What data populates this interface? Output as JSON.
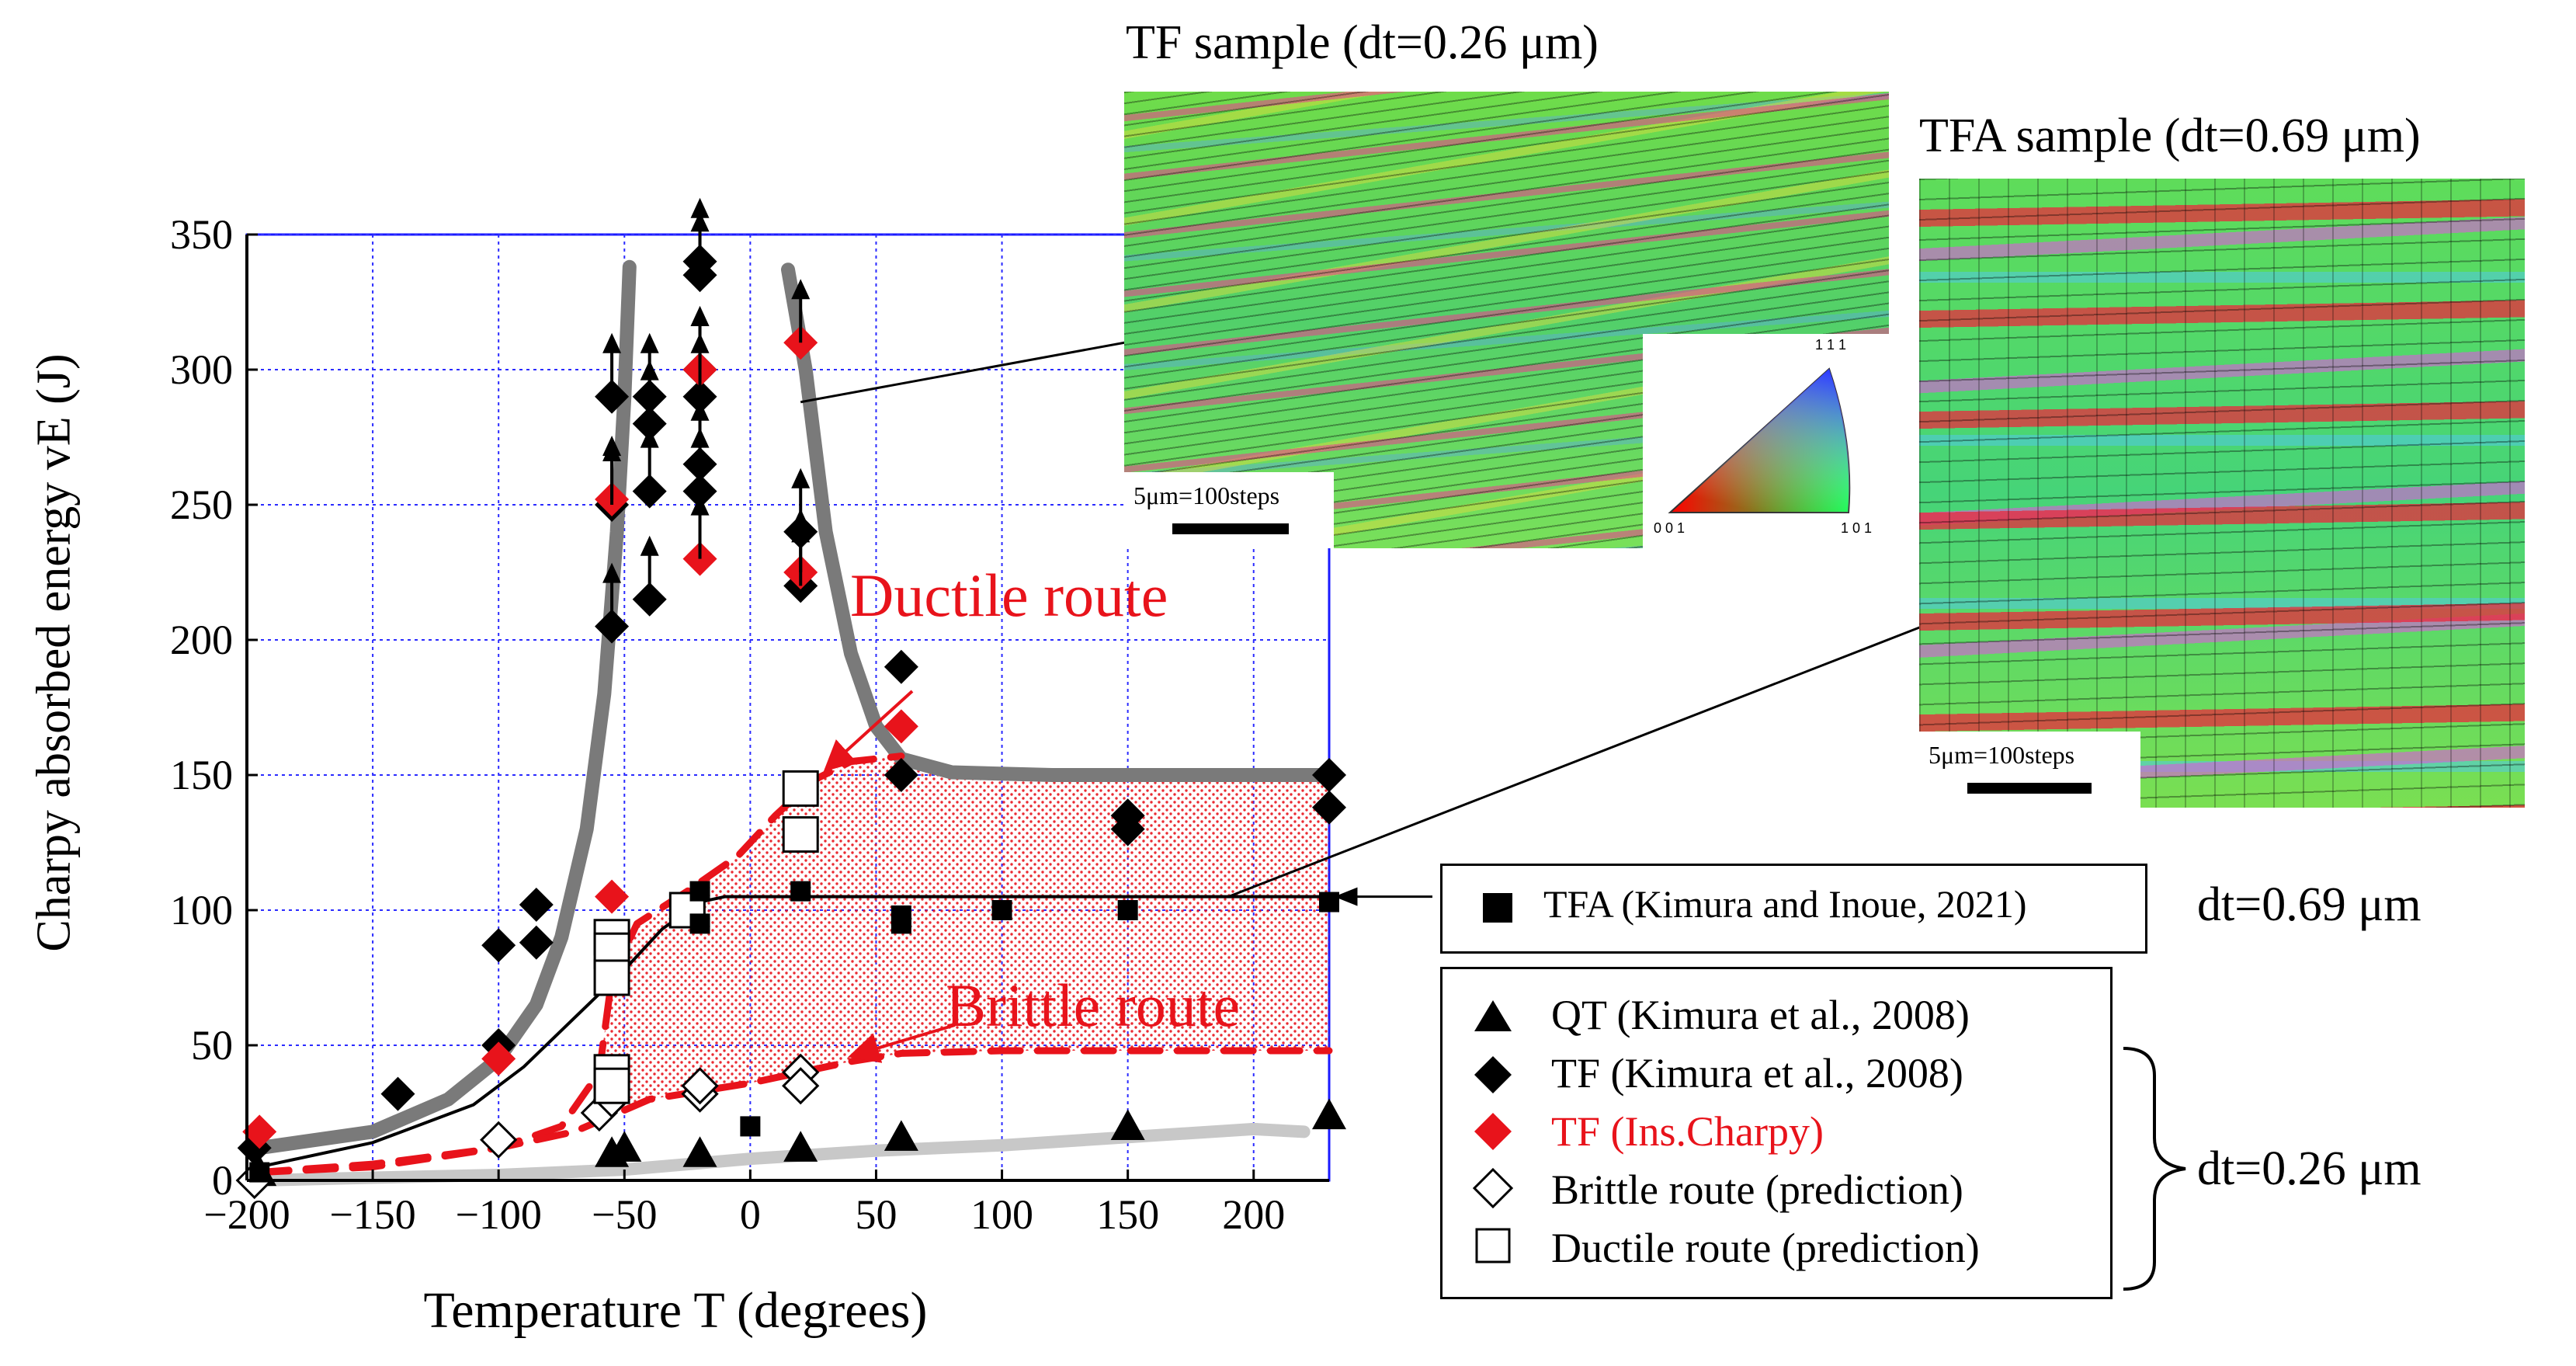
{
  "chart_data": {
    "type": "scatter",
    "xlabel": "Temperature T (degrees)",
    "ylabel": "Charpy absorbed energy vE (J)",
    "xlim": [
      -200,
      230
    ],
    "ylim": [
      0,
      350
    ],
    "xticks": [
      -200,
      -150,
      -100,
      -50,
      0,
      50,
      100,
      150,
      200
    ],
    "yticks": [
      0,
      50,
      100,
      150,
      200,
      250,
      300,
      350
    ],
    "grid": true,
    "series": [
      {
        "name": "QT (Kimura et al., 2008)",
        "marker": "triangle",
        "color": "#000000",
        "points": [
          [
            -195,
            3
          ],
          [
            -55,
            10
          ],
          [
            -50,
            12
          ],
          [
            -20,
            10
          ],
          [
            20,
            12
          ],
          [
            60,
            16
          ],
          [
            150,
            20
          ],
          [
            230,
            24
          ]
        ]
      },
      {
        "name": "TF (Kimura et al., 2008)",
        "marker": "diamond",
        "color": "#000000",
        "points": [
          [
            -197,
            12
          ],
          [
            -140,
            32
          ],
          [
            -100,
            87
          ],
          [
            -100,
            50
          ],
          [
            -85,
            102
          ],
          [
            -85,
            88
          ],
          [
            -55,
            290
          ],
          [
            -55,
            205
          ],
          [
            -55,
            250
          ],
          [
            -40,
            290
          ],
          [
            -40,
            280
          ],
          [
            -40,
            255
          ],
          [
            -40,
            215
          ],
          [
            -20,
            300
          ],
          [
            -20,
            290
          ],
          [
            -20,
            265
          ],
          [
            -20,
            255
          ],
          [
            -20,
            335
          ],
          [
            -20,
            340
          ],
          [
            20,
            220
          ],
          [
            20,
            240
          ],
          [
            60,
            190
          ],
          [
            60,
            150
          ],
          [
            150,
            135
          ],
          [
            150,
            130
          ],
          [
            230,
            150
          ],
          [
            230,
            138
          ]
        ]
      },
      {
        "name": "TF (Ins.Charpy)",
        "marker": "diamond",
        "color": "#e8131b",
        "points": [
          [
            -195,
            18
          ],
          [
            -100,
            45
          ],
          [
            -55,
            252
          ],
          [
            -55,
            105
          ],
          [
            -20,
            300
          ],
          [
            -20,
            230
          ],
          [
            20,
            225
          ],
          [
            20,
            310
          ],
          [
            60,
            168
          ]
        ]
      },
      {
        "name": "Brittle route (prediction)",
        "marker": "open-diamond",
        "color": "#000000",
        "points": [
          [
            -197,
            0
          ],
          [
            -100,
            15
          ],
          [
            -60,
            25
          ],
          [
            -55,
            30
          ],
          [
            -20,
            32
          ],
          [
            -20,
            35
          ],
          [
            20,
            40
          ],
          [
            20,
            35
          ]
        ]
      },
      {
        "name": "Ductile route (prediction)",
        "marker": "open-square",
        "color": "#000000",
        "points": [
          [
            -55,
            90
          ],
          [
            -55,
            85
          ],
          [
            -55,
            75
          ],
          [
            -55,
            40
          ],
          [
            -55,
            35
          ],
          [
            -25,
            100
          ],
          [
            20,
            145
          ],
          [
            20,
            128
          ]
        ]
      },
      {
        "name": "TFA (Kimura and Inoue, 2021)",
        "marker": "filled-square",
        "color": "#000000",
        "points": [
          [
            -195,
            3
          ],
          [
            -20,
            107
          ],
          [
            -20,
            95
          ],
          [
            0,
            20
          ],
          [
            20,
            107
          ],
          [
            60,
            98
          ],
          [
            60,
            95
          ],
          [
            100,
            100
          ],
          [
            150,
            100
          ],
          [
            230,
            103
          ]
        ]
      }
    ],
    "curves": [
      {
        "name": "TF ductile-brittle curve (left)",
        "color": "#7a7a7a",
        "points": [
          [
            -195,
            12
          ],
          [
            -150,
            18
          ],
          [
            -120,
            30
          ],
          [
            -100,
            45
          ],
          [
            -85,
            65
          ],
          [
            -75,
            90
          ],
          [
            -65,
            130
          ],
          [
            -58,
            180
          ],
          [
            -53,
            240
          ],
          [
            -50,
            290
          ],
          [
            -48,
            338
          ]
        ]
      },
      {
        "name": "TF ductile-brittle curve (right)",
        "color": "#7a7a7a",
        "points": [
          [
            15,
            337
          ],
          [
            22,
            300
          ],
          [
            30,
            240
          ],
          [
            40,
            195
          ],
          [
            50,
            168
          ],
          [
            60,
            156
          ],
          [
            80,
            151
          ],
          [
            120,
            150
          ],
          [
            180,
            150
          ],
          [
            230,
            150
          ]
        ]
      },
      {
        "name": "QT fit",
        "color": "#c8c8c8",
        "points": [
          [
            -195,
            0
          ],
          [
            -150,
            1
          ],
          [
            -100,
            2
          ],
          [
            -50,
            4
          ],
          [
            0,
            8
          ],
          [
            50,
            11
          ],
          [
            100,
            13
          ],
          [
            150,
            16
          ],
          [
            200,
            19
          ],
          [
            220,
            18
          ]
        ]
      },
      {
        "name": "TFA fit",
        "color": "#000000",
        "points": [
          [
            -195,
            5
          ],
          [
            -150,
            14
          ],
          [
            -110,
            28
          ],
          [
            -90,
            42
          ],
          [
            -70,
            60
          ],
          [
            -50,
            78
          ],
          [
            -35,
            93
          ],
          [
            -20,
            103
          ],
          [
            -10,
            105
          ],
          [
            100,
            105
          ],
          [
            230,
            105
          ]
        ]
      },
      {
        "name": "Ductile route",
        "color": "#e8131b",
        "dashed": true,
        "points": [
          [
            -195,
            3
          ],
          [
            -150,
            5
          ],
          [
            -100,
            12
          ],
          [
            -75,
            20
          ],
          [
            -60,
            40
          ],
          [
            -55,
            75
          ],
          [
            -45,
            95
          ],
          [
            -25,
            107
          ],
          [
            -5,
            120
          ],
          [
            10,
            135
          ],
          [
            25,
            148
          ],
          [
            40,
            155
          ],
          [
            60,
            157
          ]
        ]
      },
      {
        "name": "Brittle route",
        "color": "#e8131b",
        "dashed": true,
        "points": [
          [
            -195,
            3
          ],
          [
            -150,
            6
          ],
          [
            -100,
            12
          ],
          [
            -70,
            18
          ],
          [
            -55,
            24
          ],
          [
            -40,
            30
          ],
          [
            -20,
            33
          ],
          [
            0,
            36
          ],
          [
            20,
            40
          ],
          [
            40,
            44
          ],
          [
            60,
            47
          ],
          [
            100,
            48
          ],
          [
            150,
            48
          ],
          [
            230,
            48
          ]
        ]
      }
    ],
    "annotations": {
      "ductile": "Ductile route",
      "brittle": "Brittle route"
    }
  },
  "micrographs": {
    "tf": {
      "title": "TF sample",
      "dt_value": "(dt=0.26 μm)",
      "scale": "5μm=100steps"
    },
    "tfa": {
      "title": "TFA sample",
      "dt_value": "(dt=0.69 μm)",
      "scale": "5μm=100steps"
    },
    "ipf": {
      "c111": "1 1 1",
      "c001": "0 0 1",
      "c101": "1 0 1"
    }
  },
  "legend": {
    "tfa_label": "TFA (Kimura and Inoue, 2021)",
    "tfa_dt": "dt=0.69 μm",
    "items": [
      {
        "label": "QT (Kimura et al., 2008)",
        "color": "#000000"
      },
      {
        "label": "TF (Kimura et al., 2008)",
        "color": "#000000"
      },
      {
        "label": "TF (Ins.Charpy)",
        "color": "#e8131b"
      },
      {
        "label": "Brittle route (prediction)",
        "color": "#000000"
      },
      {
        "label": "Ductile route (prediction)",
        "color": "#000000"
      }
    ],
    "group_dt": "dt=0.26 μm"
  }
}
